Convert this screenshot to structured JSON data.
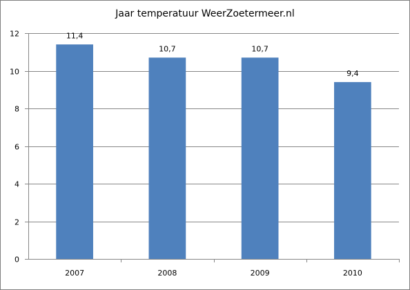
{
  "chart_data": {
    "type": "bar",
    "title": "Jaar temperatuur WeerZoetermeer.nl",
    "categories": [
      "2007",
      "2008",
      "2009",
      "2010"
    ],
    "values": [
      11.4,
      10.7,
      10.7,
      9.4
    ],
    "data_labels": [
      "11,4",
      "10,7",
      "10,7",
      "9,4"
    ],
    "ylim": [
      0,
      12
    ],
    "yticks": [
      0,
      2,
      4,
      6,
      8,
      10,
      12
    ],
    "grid": true,
    "legend": "none",
    "bar_color": "#4f81bd",
    "gridline_color": "#868686"
  }
}
